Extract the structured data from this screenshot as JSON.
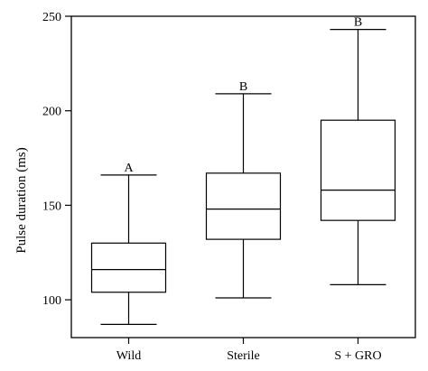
{
  "chart_data": {
    "type": "box",
    "title": "",
    "xlabel": "",
    "ylabel": "Pulse duration (ms)",
    "ylim": [
      80,
      250
    ],
    "yticks": [
      100,
      150,
      200,
      250
    ],
    "grid": false,
    "legend": "none",
    "categories": [
      "Wild",
      "Sterile",
      "S + GRO"
    ],
    "boxes": [
      {
        "category": "Wild",
        "min": 87,
        "q1": 104,
        "median": 116,
        "q3": 130,
        "max": 166,
        "group": "A"
      },
      {
        "category": "Sterile",
        "min": 101,
        "q1": 132,
        "median": 148,
        "q3": 167,
        "max": 209,
        "group": "B"
      },
      {
        "category": "S + GRO",
        "min": 108,
        "q1": 142,
        "median": 158,
        "q3": 195,
        "max": 243,
        "group": "B"
      }
    ],
    "colors": {
      "stroke": "#000000",
      "fill": "#ffffff"
    }
  }
}
